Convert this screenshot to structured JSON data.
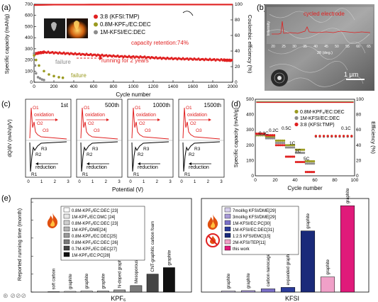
{
  "colors": {
    "red": "#e02020",
    "olive": "#9a9a20",
    "grey": "#8c8c8c",
    "blue": "#2a3a9a",
    "magenta": "#e01a7a",
    "black": "#1a1a1a"
  },
  "panel_labels": {
    "a": "(a)",
    "b": "(b)",
    "c": "(c)",
    "d": "(d)",
    "e": "(e)"
  },
  "icons": [
    "flame-icon",
    "no-flame-icon",
    "photo-inset",
    "sem-image"
  ],
  "panel_a": {
    "ylabel_left": "Specific capacity (mAh/g)",
    "ylabel_right": "Coulombic efficiency (%)",
    "xlabel": "Cycle number",
    "legend": [
      "3:8 (KFSI:TMP)",
      "0.8M-KPF₆/EC:DEC",
      "1M-KFSI/EC:DEC"
    ],
    "annot_retention": "capacity retention:74%",
    "annot_running": "running for 2 years",
    "annot_failure": "failure"
  },
  "panel_b": {
    "title": "cycled electrode",
    "ylabel": "Intensity",
    "xlabel": "2θ (deg.)",
    "ticks": [
      "20",
      "25",
      "30",
      "35",
      "40",
      "45",
      "50",
      "55",
      "60",
      "65"
    ],
    "scalebar": "1 μm"
  },
  "panel_c": {
    "ylabel": "dQ/dV (mAh/g/V)",
    "xlabel": "Potential (V)",
    "subpanels": [
      {
        "label": "1st",
        "ticks": [
          "0",
          "1",
          "2",
          "3"
        ]
      },
      {
        "label": "500th",
        "ticks": [
          "0",
          "1",
          "2",
          "3"
        ]
      },
      {
        "label": "1000th",
        "ticks": [
          "0",
          "1",
          "2",
          "3"
        ]
      },
      {
        "label": "1500th",
        "ticks": [
          "0",
          "1",
          "2",
          "3"
        ]
      }
    ],
    "peaks_ox": [
      "O1",
      "O2",
      "O3"
    ],
    "peaks_red": [
      "R1",
      "R2",
      "R3"
    ],
    "oxidation": "oxidation",
    "reduction": "reduction"
  },
  "panel_d": {
    "ylabel_left": "Specific capacity (mAh/g)",
    "ylabel_right": "Efficiency (%)",
    "xlabel": "Cycle number",
    "legend": [
      "0.8M-KPF₆/EC:DEC",
      "1M-KFSI/EC:DEC",
      "3:8 (KFSI:TMP)"
    ],
    "rates": [
      "0.1C",
      "0.2C",
      "0.5C",
      "1C",
      "2C",
      "5C",
      "0.1C"
    ]
  },
  "panel_e": {
    "ylabel": "Reported running time (month)",
    "groups": [
      "KPF₆",
      "KFSI"
    ],
    "legend_left": [
      "0.8M-KPF₆/EC:DEC [23]",
      "1M-KPF₆/EC:DMC [24]",
      "0.8M-KPF₆/EC:DEC [23]",
      "1M-KPF₆/DME[24]",
      "0.8M-KPF₆/EC:DEC[25]",
      "0.8M-KPF₆/EC:DEC [26]",
      "0.7M-KPF₆/EC:DEC[27]",
      "1M-KPF₆/EC:PC[28]"
    ],
    "legend_right": [
      "7mol/kg KFSI/DME[29]",
      "3mol/kg KFSI/DME[29]",
      "1M-KFSI/EC:PC[30]",
      "1M-KFSI/EC:DEC[31]",
      "1:2.5 KFSI/EMC[15]",
      "2M-KFSI/TEP[11]",
      "this work"
    ]
  },
  "chart_data": [
    {
      "panel": "a",
      "type": "line",
      "xlabel": "Cycle number",
      "ylabel": "Specific capacity (mAh/g)",
      "y2label": "Coulombic efficiency (%)",
      "xlim": [
        0,
        2000
      ],
      "ylim": [
        0,
        700
      ],
      "y2lim": [
        0,
        100
      ],
      "xticks": [
        0,
        200,
        400,
        600,
        800,
        1000,
        1200,
        1400,
        1600,
        1800,
        2000
      ],
      "yticks": [
        0,
        100,
        200,
        300,
        400,
        500,
        600,
        700
      ],
      "y2ticks": [
        0,
        20,
        40,
        60,
        80,
        100
      ],
      "series": [
        {
          "name": "3:8 (KFSI:TMP)",
          "axis": "left",
          "x": [
            1,
            100,
            300,
            500,
            700,
            900,
            1100,
            1300,
            1500,
            1700,
            1900,
            2000
          ],
          "y": [
            255,
            270,
            260,
            250,
            240,
            230,
            225,
            215,
            210,
            205,
            200,
            195
          ]
        },
        {
          "name": "3:8 (KFSI:TMP)",
          "axis": "right",
          "x": [
            1,
            200,
            500,
            1000,
            1500,
            2000
          ],
          "y": [
            99,
            99.5,
            99.5,
            99.6,
            99.6,
            99.6
          ]
        },
        {
          "name": "0.8M-KPF₆/EC:DEC",
          "axis": "left",
          "x": [
            1,
            20,
            50,
            100,
            150,
            200,
            250,
            290
          ],
          "y": [
            240,
            200,
            150,
            100,
            70,
            55,
            45,
            40
          ]
        },
        {
          "name": "1M-KFSI/EC:DEC",
          "axis": "left",
          "x": [
            1,
            10,
            20,
            40,
            60,
            80,
            100
          ],
          "y": [
            260,
            150,
            80,
            45,
            35,
            25,
            20
          ]
        }
      ]
    },
    {
      "panel": "c",
      "type": "line",
      "xlabel": "Potential (V)",
      "ylabel": "dQ/dV (mAh/g/V)",
      "xlim": [
        0,
        3
      ],
      "subplots": [
        "1st",
        "500th",
        "1000th",
        "1500th"
      ]
    },
    {
      "panel": "d",
      "type": "scatter",
      "xlabel": "Cycle number",
      "ylabel": "Specific capacity (mAh/g)",
      "y2label": "Efficiency (%)",
      "xlim": [
        0,
        100
      ],
      "ylim": [
        0,
        500
      ],
      "y2lim": [
        0,
        100
      ],
      "xticks": [
        0,
        20,
        40,
        60,
        80,
        100
      ],
      "yticks": [
        0,
        100,
        200,
        300,
        400,
        500
      ],
      "y2ticks": [
        0,
        20,
        40,
        60,
        80,
        100
      ],
      "rates": [
        {
          "label": "0.1C",
          "x0": 1,
          "x1": 10
        },
        {
          "label": "0.2C",
          "x0": 11,
          "x1": 20
        },
        {
          "label": "0.5C",
          "x0": 21,
          "x1": 30
        },
        {
          "label": "1C",
          "x0": 31,
          "x1": 40
        },
        {
          "label": "2C",
          "x0": 41,
          "x1": 50
        },
        {
          "label": "5C",
          "x0": 51,
          "x1": 60
        },
        {
          "label": "0.1C",
          "x0": 61,
          "x1": 100
        }
      ],
      "series": [
        {
          "name": "0.8M-KPF₆/EC:DEC",
          "capacity": [
            265,
            255,
            230,
            200,
            170,
            95,
            260
          ]
        },
        {
          "name": "1M-KFSI/EC:DEC",
          "capacity": [
            270,
            245,
            215,
            185,
            150,
            80,
            255
          ]
        },
        {
          "name": "3:8 (KFSI:TMP)",
          "capacity": [
            275,
            265,
            200,
            125,
            90,
            25,
            260
          ]
        }
      ]
    },
    {
      "panel": "e",
      "type": "bar",
      "ylabel": "Reported running time (month)",
      "ylim": [
        0,
        26
      ],
      "groups": [
        {
          "name": "KPF₆",
          "categories": [
            "soft carbon",
            "graphite",
            "graphite",
            "graphite",
            "N-doped graphene",
            "Mesoporous Carbon",
            "CNT-graphitic carbon foam",
            "graphite"
          ],
          "values": [
            0.1,
            0.2,
            0.3,
            0.3,
            0.6,
            1.8,
            5.0,
            6.8
          ]
        },
        {
          "name": "KFSI",
          "categories": [
            "graphite",
            "graphite",
            "carbon nanocage",
            "expanded graphite",
            "graphite",
            "graphite",
            "graphite"
          ],
          "values": [
            0.3,
            0.4,
            0.9,
            1.3,
            17.0,
            4.2,
            24.0
          ]
        }
      ]
    }
  ]
}
